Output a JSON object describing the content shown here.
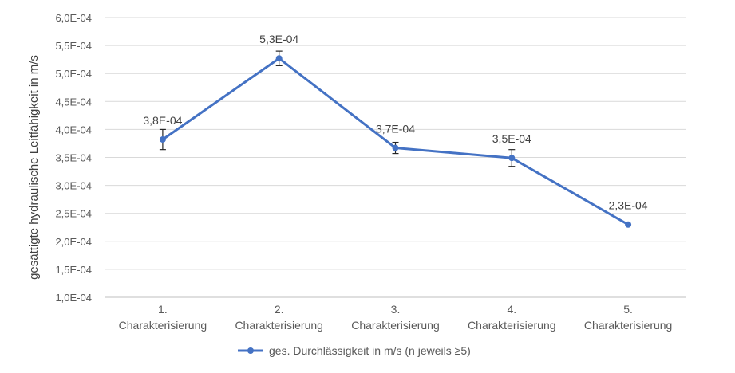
{
  "chart_data": {
    "type": "line",
    "title": "",
    "xlabel": "",
    "ylabel": "gesättigte hydraulische Leitfähigkeit in m/s",
    "ylim": [
      0.0001,
      0.0006
    ],
    "yticks": [
      0.0001,
      0.00015,
      0.0002,
      0.00025,
      0.0003,
      0.00035,
      0.0004,
      0.00045,
      0.0005,
      0.00055,
      0.0006
    ],
    "ytick_labels": [
      "1,0E-04",
      "1,5E-04",
      "2,0E-04",
      "2,5E-04",
      "3,0E-04",
      "3,5E-04",
      "4,0E-04",
      "4,5E-04",
      "5,0E-04",
      "5,5E-04",
      "6,0E-04"
    ],
    "categories": [
      [
        "1.",
        "Charakterisierung"
      ],
      [
        "2.",
        "Charakterisierung"
      ],
      [
        "3.",
        "Charakterisierung"
      ],
      [
        "4.",
        "Charakterisierung"
      ],
      [
        "5.",
        "Charakterisierung"
      ]
    ],
    "grid": true,
    "legend_position": "bottom",
    "series": [
      {
        "name": "ges. Durchlässigkeit in m/s (n jeweils ≥5)",
        "color": "#4472c4",
        "values": [
          0.000382,
          0.000527,
          0.000367,
          0.000349,
          0.00023
        ],
        "errors": [
          1.8e-05,
          1.3e-05,
          1e-05,
          1.5e-05,
          0.0
        ],
        "data_labels": [
          "3,8E-04",
          "5,3E-04",
          "3,7E-04",
          "3,5E-04",
          "2,3E-04"
        ]
      }
    ]
  }
}
